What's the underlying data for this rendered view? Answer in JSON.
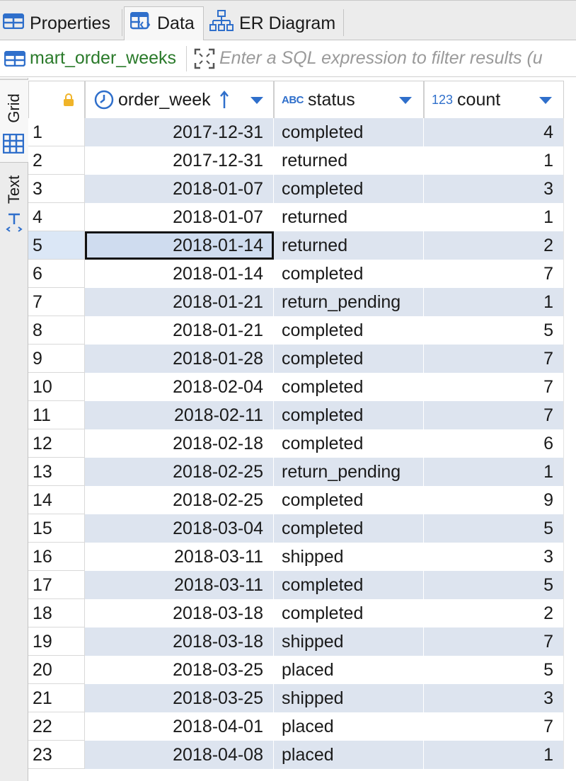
{
  "tabs": [
    {
      "label": "Properties",
      "icon": "table-icon",
      "active": false
    },
    {
      "label": "Data",
      "icon": "data-grid-icon",
      "active": true
    },
    {
      "label": "ER Diagram",
      "icon": "er-diagram-icon",
      "active": false
    }
  ],
  "filter": {
    "table_name": "mart_order_weeks",
    "placeholder": "Enter a SQL expression to filter results (u"
  },
  "side_tabs": [
    {
      "label": "Grid",
      "icon": "grid-icon",
      "active": true
    },
    {
      "label": "Text",
      "icon": "text-icon",
      "active": false
    }
  ],
  "columns": [
    {
      "name": "order_week",
      "type_icon": "clock-icon",
      "sorted": "ascending"
    },
    {
      "name": "status",
      "type_icon": "abc-icon",
      "type_badge": "ABC"
    },
    {
      "name": "count",
      "type_icon": "numeric-icon",
      "type_badge": "123"
    }
  ],
  "rows": [
    {
      "n": "1",
      "order_week": "2017-12-31",
      "status": "completed",
      "count": "4"
    },
    {
      "n": "2",
      "order_week": "2017-12-31",
      "status": "returned",
      "count": "1"
    },
    {
      "n": "3",
      "order_week": "2018-01-07",
      "status": "completed",
      "count": "3"
    },
    {
      "n": "4",
      "order_week": "2018-01-07",
      "status": "returned",
      "count": "1"
    },
    {
      "n": "5",
      "order_week": "2018-01-14",
      "status": "returned",
      "count": "2"
    },
    {
      "n": "6",
      "order_week": "2018-01-14",
      "status": "completed",
      "count": "7"
    },
    {
      "n": "7",
      "order_week": "2018-01-21",
      "status": "return_pending",
      "count": "1"
    },
    {
      "n": "8",
      "order_week": "2018-01-21",
      "status": "completed",
      "count": "5"
    },
    {
      "n": "9",
      "order_week": "2018-01-28",
      "status": "completed",
      "count": "7"
    },
    {
      "n": "10",
      "order_week": "2018-02-04",
      "status": "completed",
      "count": "7"
    },
    {
      "n": "11",
      "order_week": "2018-02-11",
      "status": "completed",
      "count": "7"
    },
    {
      "n": "12",
      "order_week": "2018-02-18",
      "status": "completed",
      "count": "6"
    },
    {
      "n": "13",
      "order_week": "2018-02-25",
      "status": "return_pending",
      "count": "1"
    },
    {
      "n": "14",
      "order_week": "2018-02-25",
      "status": "completed",
      "count": "9"
    },
    {
      "n": "15",
      "order_week": "2018-03-04",
      "status": "completed",
      "count": "5"
    },
    {
      "n": "16",
      "order_week": "2018-03-11",
      "status": "shipped",
      "count": "3"
    },
    {
      "n": "17",
      "order_week": "2018-03-11",
      "status": "completed",
      "count": "5"
    },
    {
      "n": "18",
      "order_week": "2018-03-18",
      "status": "completed",
      "count": "2"
    },
    {
      "n": "19",
      "order_week": "2018-03-18",
      "status": "shipped",
      "count": "7"
    },
    {
      "n": "20",
      "order_week": "2018-03-25",
      "status": "placed",
      "count": "5"
    },
    {
      "n": "21",
      "order_week": "2018-03-25",
      "status": "shipped",
      "count": "3"
    },
    {
      "n": "22",
      "order_week": "2018-04-01",
      "status": "placed",
      "count": "7"
    },
    {
      "n": "23",
      "order_week": "2018-04-08",
      "status": "placed",
      "count": "1"
    }
  ],
  "selected_row": 5,
  "colors": {
    "accent": "#2f6fcb",
    "table_name": "#2a7a2a",
    "alt_row": "#dde4ef",
    "lock": "#f0b429"
  }
}
